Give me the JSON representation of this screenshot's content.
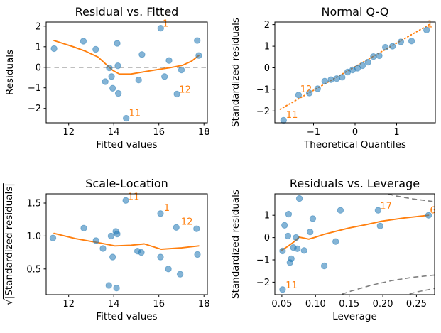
{
  "figure": {
    "background": "#ffffff",
    "text_color": "#000000",
    "accent_color": "#ff7f0e",
    "point_color": "#1f77b4",
    "dashed_gray": "#7f7f7f",
    "frame_color": "#000000"
  },
  "chart_data": [
    {
      "id": "residual-vs-fitted",
      "type": "scatter",
      "title": "Residual vs. Fitted",
      "xlabel": "Fitted values",
      "ylabel": "Residuals",
      "xlim": [
        11.0,
        18.15
      ],
      "ylim": [
        -2.7,
        2.2
      ],
      "xticks": [
        12,
        14,
        16,
        18
      ],
      "xtick_labels": [
        "12",
        "14",
        "16",
        "18"
      ],
      "yticks": [
        -2,
        -1,
        0,
        1,
        2
      ],
      "ytick_labels": [
        "−2",
        "−1",
        "0",
        "1",
        "2"
      ],
      "zero_line": 0,
      "points": [
        [
          11.35,
          0.91
        ],
        [
          12.65,
          1.27
        ],
        [
          13.2,
          0.87
        ],
        [
          13.62,
          -0.7
        ],
        [
          13.8,
          -0.03
        ],
        [
          13.9,
          -0.45
        ],
        [
          13.95,
          -1.02
        ],
        [
          14.15,
          1.16
        ],
        [
          14.18,
          0.07
        ],
        [
          14.2,
          -1.27
        ],
        [
          14.55,
          -2.48
        ],
        [
          15.1,
          -0.62
        ],
        [
          15.25,
          0.62
        ],
        [
          16.08,
          1.9
        ],
        [
          16.25,
          -0.45
        ],
        [
          16.45,
          0.33
        ],
        [
          16.8,
          -1.3
        ],
        [
          17.0,
          -0.13
        ],
        [
          17.7,
          1.3
        ],
        [
          17.77,
          0.57
        ]
      ],
      "smooth_line": [
        [
          11.35,
          1.3
        ],
        [
          12.2,
          1.0
        ],
        [
          12.75,
          0.78
        ],
        [
          13.3,
          0.5
        ],
        [
          13.95,
          -0.15
        ],
        [
          14.25,
          -0.33
        ],
        [
          14.75,
          -0.33
        ],
        [
          15.35,
          -0.22
        ],
        [
          16.0,
          -0.1
        ],
        [
          16.5,
          -0.02
        ],
        [
          17.05,
          0.1
        ],
        [
          17.45,
          0.3
        ],
        [
          17.77,
          0.57
        ]
      ],
      "annotations": [
        {
          "text": "1",
          "x": 16.17,
          "y": 1.98
        },
        {
          "text": "12",
          "x": 16.9,
          "y": -1.24
        },
        {
          "text": "11",
          "x": 14.67,
          "y": -2.38
        }
      ]
    },
    {
      "id": "normal-qq",
      "type": "scatter",
      "title": "Normal Q-Q",
      "xlabel": "Theoretical Quantiles",
      "ylabel": "Standardized residuals",
      "xlim": [
        -1.93,
        1.93
      ],
      "ylim": [
        -2.55,
        2.12
      ],
      "xticks": [
        -1,
        0,
        1
      ],
      "xtick_labels": [
        "−1",
        "0",
        "1"
      ],
      "yticks": [
        -2,
        -1,
        0,
        1,
        2
      ],
      "ytick_labels": [
        "−2",
        "−1",
        "0",
        "1",
        "2"
      ],
      "ref_line": [
        [
          -1.8,
          -1.92
        ],
        [
          1.8,
          2.02
        ]
      ],
      "points": [
        [
          -1.72,
          -2.43
        ],
        [
          -1.36,
          -1.26
        ],
        [
          -1.1,
          -1.17
        ],
        [
          -0.9,
          -0.97
        ],
        [
          -0.73,
          -0.62
        ],
        [
          -0.58,
          -0.55
        ],
        [
          -0.44,
          -0.5
        ],
        [
          -0.31,
          -0.44
        ],
        [
          -0.18,
          -0.2
        ],
        [
          -0.06,
          -0.1
        ],
        [
          0.06,
          -0.02
        ],
        [
          0.18,
          0.1
        ],
        [
          0.31,
          0.26
        ],
        [
          0.44,
          0.52
        ],
        [
          0.58,
          0.56
        ],
        [
          0.73,
          0.95
        ],
        [
          0.9,
          1.0
        ],
        [
          1.1,
          1.2
        ],
        [
          1.36,
          1.24
        ],
        [
          1.72,
          1.75
        ]
      ],
      "annotations": [
        {
          "text": "11",
          "x": -1.66,
          "y": -2.32
        },
        {
          "text": "12",
          "x": -1.32,
          "y": -1.14
        },
        {
          "text": "1",
          "x": 1.73,
          "y": 1.87
        }
      ]
    },
    {
      "id": "scale-location",
      "type": "scatter",
      "title": "Scale-Location",
      "xlabel": "Fitted values",
      "ylabel_sqrt": "√",
      "ylabel_body": "|Standardized residuals|",
      "xlim": [
        11.0,
        18.15
      ],
      "ylim": [
        0.11,
        1.64
      ],
      "xticks": [
        12,
        14,
        16,
        18
      ],
      "xtick_labels": [
        "12",
        "14",
        "16",
        "18"
      ],
      "yticks": [
        0.5,
        1.0,
        1.5
      ],
      "ytick_labels": [
        "0.5",
        "1.0",
        "1.5"
      ],
      "points": [
        [
          11.3,
          0.97
        ],
        [
          12.67,
          1.12
        ],
        [
          13.21,
          0.93
        ],
        [
          13.52,
          0.81
        ],
        [
          13.78,
          0.25
        ],
        [
          13.88,
          1.0
        ],
        [
          13.95,
          0.68
        ],
        [
          14.09,
          1.07
        ],
        [
          14.15,
          1.03
        ],
        [
          14.12,
          0.21
        ],
        [
          14.53,
          1.54
        ],
        [
          15.05,
          0.77
        ],
        [
          15.22,
          0.75
        ],
        [
          16.07,
          1.34
        ],
        [
          16.07,
          0.68
        ],
        [
          16.42,
          0.5
        ],
        [
          16.77,
          1.13
        ],
        [
          16.94,
          0.42
        ],
        [
          17.67,
          1.11
        ],
        [
          17.71,
          0.72
        ]
      ],
      "smooth_line": [
        [
          11.35,
          1.04
        ],
        [
          12.3,
          0.96
        ],
        [
          13.3,
          0.9
        ],
        [
          14.05,
          0.85
        ],
        [
          14.75,
          0.86
        ],
        [
          15.35,
          0.88
        ],
        [
          16.1,
          0.8
        ],
        [
          17.0,
          0.82
        ],
        [
          17.77,
          0.85
        ]
      ],
      "annotations": [
        {
          "text": "11",
          "x": 14.62,
          "y": 1.55
        },
        {
          "text": "1",
          "x": 16.22,
          "y": 1.38
        },
        {
          "text": "12",
          "x": 16.98,
          "y": 1.17
        }
      ]
    },
    {
      "id": "residuals-vs-leverage",
      "type": "scatter",
      "title": "Residuals vs. Leverage",
      "xlabel": "Leverage",
      "ylabel": "Standardized residuals",
      "xlim": [
        0.0395,
        0.277
      ],
      "ylim": [
        -2.56,
        1.96
      ],
      "xticks": [
        0.05,
        0.1,
        0.15,
        0.2,
        0.25
      ],
      "xtick_labels": [
        "0.05",
        "0.10",
        "0.15",
        "0.20",
        "0.25"
      ],
      "yticks": [
        -2,
        -1,
        0,
        1
      ],
      "ytick_labels": [
        "−2",
        "−1",
        "0",
        "1"
      ],
      "points": [
        [
          0.051,
          -2.33
        ],
        [
          0.051,
          -0.6
        ],
        [
          0.054,
          0.55
        ],
        [
          0.059,
          0.07
        ],
        [
          0.06,
          1.05
        ],
        [
          0.062,
          -1.12
        ],
        [
          0.064,
          -0.95
        ],
        [
          0.067,
          -0.45
        ],
        [
          0.071,
          0.0
        ],
        [
          0.073,
          -0.5
        ],
        [
          0.076,
          1.75
        ],
        [
          0.083,
          -0.58
        ],
        [
          0.092,
          0.25
        ],
        [
          0.096,
          0.85
        ],
        [
          0.113,
          -1.27
        ],
        [
          0.13,
          -0.18
        ],
        [
          0.137,
          1.22
        ],
        [
          0.193,
          1.22
        ],
        [
          0.196,
          0.52
        ],
        [
          0.268,
          1.0
        ]
      ],
      "smooth_line": [
        [
          0.05,
          -0.56
        ],
        [
          0.058,
          -0.41
        ],
        [
          0.065,
          -0.26
        ],
        [
          0.071,
          -0.12
        ],
        [
          0.0755,
          0.02
        ],
        [
          0.082,
          -0.02
        ],
        [
          0.09,
          -0.07
        ],
        [
          0.099,
          0.01
        ],
        [
          0.113,
          0.15
        ],
        [
          0.13,
          0.28
        ],
        [
          0.15,
          0.43
        ],
        [
          0.175,
          0.58
        ],
        [
          0.198,
          0.73
        ],
        [
          0.23,
          0.87
        ],
        [
          0.268,
          1.0
        ]
      ],
      "dashed_curves": [
        [
          [
            0.196,
            2.05
          ],
          [
            0.22,
            1.86
          ],
          [
            0.245,
            1.73
          ],
          [
            0.274,
            1.62
          ]
        ],
        [
          [
            0.128,
            -2.65
          ],
          [
            0.155,
            -2.38
          ],
          [
            0.185,
            -2.12
          ],
          [
            0.215,
            -1.92
          ],
          [
            0.245,
            -1.78
          ],
          [
            0.277,
            -1.68
          ]
        ],
        [
          [
            0.228,
            -2.62
          ],
          [
            0.252,
            -2.43
          ],
          [
            0.277,
            -2.28
          ]
        ]
      ],
      "annotations": [
        {
          "text": "11",
          "x": 0.0555,
          "y": -2.27
        },
        {
          "text": "17",
          "x": 0.196,
          "y": 1.28
        },
        {
          "text": "6",
          "x": 0.27,
          "y": 1.08
        }
      ]
    }
  ]
}
